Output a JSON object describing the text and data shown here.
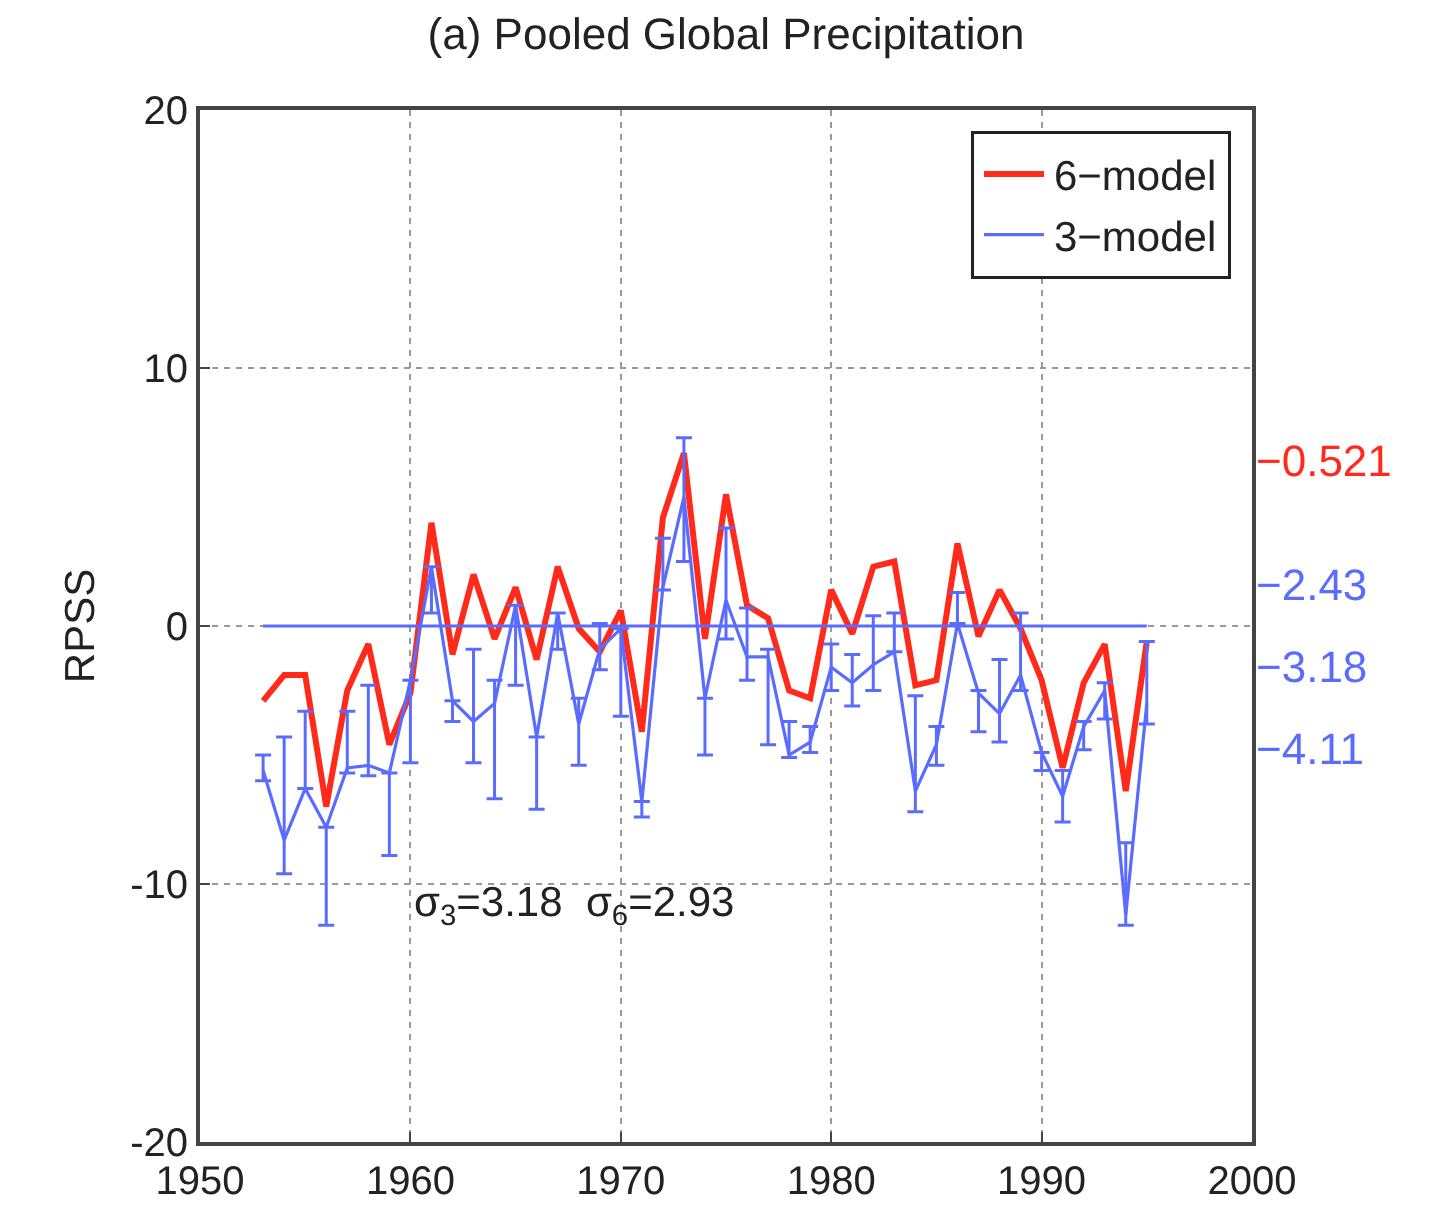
{
  "chart_data": {
    "type": "line",
    "title": "(a) Pooled Global Precipitation",
    "ylabel": "RPSS",
    "x": [
      1953,
      1954,
      1955,
      1956,
      1957,
      1958,
      1959,
      1960,
      1961,
      1962,
      1963,
      1964,
      1965,
      1966,
      1967,
      1968,
      1969,
      1970,
      1971,
      1972,
      1973,
      1974,
      1975,
      1976,
      1977,
      1978,
      1979,
      1980,
      1981,
      1982,
      1983,
      1984,
      1985,
      1986,
      1987,
      1988,
      1989,
      1990,
      1991,
      1992,
      1993,
      1994,
      1995
    ],
    "series": [
      {
        "name": "6−model",
        "color": "#ff2a1a",
        "values": [
          -2.9,
          -1.9,
          -1.9,
          -7.0,
          -2.5,
          -0.7,
          -4.6,
          -2.6,
          4.0,
          -1.1,
          2.0,
          -0.5,
          1.5,
          -1.3,
          2.3,
          -0.1,
          -1.0,
          0.6,
          -4.1,
          4.2,
          6.7,
          -0.5,
          5.1,
          0.8,
          0.3,
          -2.5,
          -2.8,
          1.4,
          -0.3,
          2.3,
          2.5,
          -2.3,
          -2.1,
          3.2,
          -0.4,
          1.4,
          -0.1,
          -2.1,
          -5.5,
          -2.2,
          -0.7,
          -6.4,
          -0.6
        ]
      },
      {
        "name": "3−model",
        "color": "#5a6cff",
        "values": [
          -5.6,
          -8.3,
          -6.3,
          -7.8,
          -5.5,
          -5.4,
          -5.7,
          -2.1,
          2.3,
          -2.9,
          -3.7,
          -3.0,
          0.8,
          -4.3,
          0.5,
          -3.8,
          -0.9,
          -0.1,
          -6.8,
          1.5,
          5.0,
          -2.8,
          1.0,
          -1.2,
          -1.2,
          -5.0,
          -4.5,
          -1.6,
          -2.2,
          -1.5,
          -1.0,
          -6.4,
          -4.6,
          0.1,
          -2.6,
          -3.4,
          -1.9,
          -4.9,
          -6.6,
          -3.9,
          -2.5,
          -11.2,
          -3.0
        ],
        "errors": [
          [
            -6.0,
            -5.0
          ],
          [
            -9.6,
            -4.3
          ],
          [
            -6.3,
            -3.3
          ],
          [
            -11.6,
            -7.8
          ],
          [
            -5.7,
            -3.3
          ],
          [
            -5.8,
            -2.3
          ],
          [
            -8.9,
            -5.7
          ],
          [
            -5.3,
            -2.1
          ],
          [
            0.5,
            2.3
          ],
          [
            -3.7,
            -2.9
          ],
          [
            -5.3,
            -0.9
          ],
          [
            -6.7,
            -2.1
          ],
          [
            -2.3,
            0.8
          ],
          [
            -7.1,
            -4.3
          ],
          [
            -0.9,
            0.5
          ],
          [
            -5.4,
            -2.8
          ],
          [
            -1.7,
            0.1
          ],
          [
            -3.5,
            -0.1
          ],
          [
            -7.4,
            -6.8
          ],
          [
            1.4,
            3.4
          ],
          [
            2.5,
            7.3
          ],
          [
            -5.0,
            -2.8
          ],
          [
            -0.5,
            3.8
          ],
          [
            -2.1,
            0.7
          ],
          [
            -4.6,
            -0.9
          ],
          [
            -5.1,
            -3.7
          ],
          [
            -4.9,
            -3.9
          ],
          [
            -2.5,
            -0.7
          ],
          [
            -3.1,
            -1.1
          ],
          [
            -2.5,
            0.4
          ],
          [
            -1.0,
            0.5
          ],
          [
            -7.2,
            -2.7
          ],
          [
            -5.4,
            -3.9
          ],
          [
            0.1,
            1.3
          ],
          [
            -4.1,
            -2.5
          ],
          [
            -4.5,
            -1.3
          ],
          [
            -2.5,
            0.5
          ],
          [
            -5.6,
            -4.9
          ],
          [
            -7.6,
            -5.6
          ],
          [
            -4.8,
            -3.7
          ],
          [
            -3.6,
            -2.2
          ],
          [
            -11.6,
            -8.4
          ],
          [
            -3.8,
            -0.6
          ]
        ]
      },
      {
        "color": "#5a6cff",
        "x": [
          1953,
          1995
        ],
        "values": [
          0,
          0
        ]
      }
    ],
    "annotations": [
      "σ$_{3}$=3.18  σ$_{6}$=2.93",
      "−0.521",
      "−2.43",
      "−3.18",
      "−4.11"
    ],
    "xlim": [
      1950,
      2000
    ],
    "xticks": [
      1950,
      1960,
      1970,
      1980,
      1990,
      2000
    ],
    "ylim": [
      -20,
      20
    ],
    "yticks": [
      -20,
      -10,
      0,
      10,
      20
    ],
    "grid": true,
    "legend": "top right",
    "line_style": "solid"
  }
}
